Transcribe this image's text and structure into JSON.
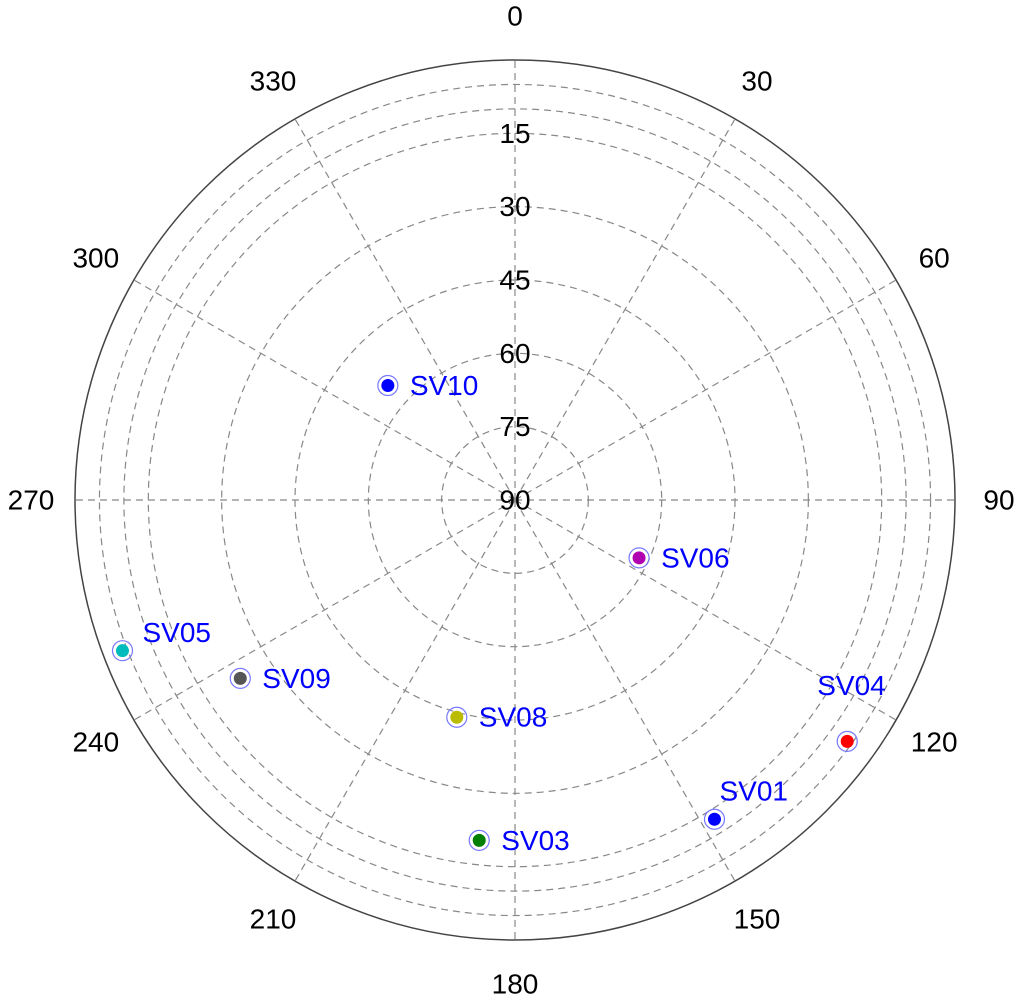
{
  "chart_data": {
    "type": "scatter",
    "projection": "polar",
    "title": "",
    "azimuth_ticks": [
      {
        "value": 0,
        "label": "0"
      },
      {
        "value": 30,
        "label": "30"
      },
      {
        "value": 60,
        "label": "60"
      },
      {
        "value": 90,
        "label": "90"
      },
      {
        "value": 120,
        "label": "120"
      },
      {
        "value": 150,
        "label": "150"
      },
      {
        "value": 180,
        "label": "180"
      },
      {
        "value": 210,
        "label": "210"
      },
      {
        "value": 240,
        "label": "240"
      },
      {
        "value": 270,
        "label": "270"
      },
      {
        "value": 300,
        "label": "300"
      },
      {
        "value": 330,
        "label": "330"
      }
    ],
    "elevation_ticks": [
      {
        "value": 0,
        "label": "0"
      },
      {
        "value": 15,
        "label": "15"
      },
      {
        "value": 30,
        "label": "30"
      },
      {
        "value": 45,
        "label": "45"
      },
      {
        "value": 60,
        "label": "60"
      },
      {
        "value": 75,
        "label": "75"
      },
      {
        "value": 90,
        "label": "90"
      }
    ],
    "elevation_range": [
      0,
      90
    ],
    "azimuth_range": [
      0,
      360
    ],
    "grid": true,
    "label_color": "#0000ff",
    "ring_color": "#7777ff",
    "satellites": [
      {
        "name": "SV10",
        "azimuth": 312,
        "elevation": 55,
        "color": "#0000ff"
      },
      {
        "name": "SV06",
        "azimuth": 115,
        "elevation": 62,
        "color": "#b000b0"
      },
      {
        "name": "SV05",
        "azimuth": 249,
        "elevation": 4,
        "color": "#00bbbb"
      },
      {
        "name": "SV09",
        "azimuth": 237,
        "elevation": 23,
        "color": "#555555"
      },
      {
        "name": "SV08",
        "azimuth": 195,
        "elevation": 44,
        "color": "#bbbb00"
      },
      {
        "name": "SV04",
        "azimuth": 126,
        "elevation": 6,
        "color": "#ff0000"
      },
      {
        "name": "SV01",
        "azimuth": 148,
        "elevation": 13,
        "color": "#0000ff"
      },
      {
        "name": "SV03",
        "azimuth": 186,
        "elevation": 20,
        "color": "#007f00"
      }
    ]
  }
}
